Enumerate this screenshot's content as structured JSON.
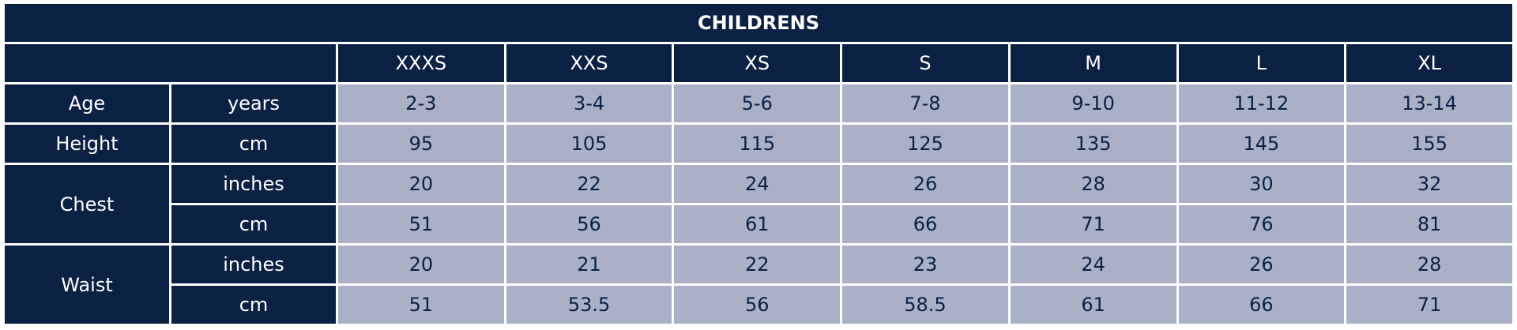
{
  "table": {
    "title": "CHILDRENS",
    "sizes": [
      "XXXS",
      "XXS",
      "XS",
      "S",
      "M",
      "L",
      "XL"
    ],
    "groups": [
      {
        "label": "Age",
        "rows": [
          {
            "unit": "years",
            "values": [
              "2-3",
              "3-4",
              "5-6",
              "7-8",
              "9-10",
              "11-12",
              "13-14"
            ]
          }
        ]
      },
      {
        "label": "Height",
        "rows": [
          {
            "unit": "cm",
            "values": [
              95,
              105,
              115,
              125,
              135,
              145,
              155
            ]
          }
        ]
      },
      {
        "label": "Chest",
        "rows": [
          {
            "unit": "inches",
            "values": [
              20,
              22,
              24,
              26,
              28,
              30,
              32
            ]
          },
          {
            "unit": "cm",
            "values": [
              51,
              56,
              61,
              66,
              71,
              76,
              81
            ]
          }
        ]
      },
      {
        "label": "Waist",
        "rows": [
          {
            "unit": "inches",
            "values": [
              20,
              21,
              22,
              23,
              24,
              26,
              28
            ]
          },
          {
            "unit": "cm",
            "values": [
              51,
              53.5,
              56,
              58.5,
              61,
              66,
              71
            ]
          }
        ]
      }
    ]
  }
}
